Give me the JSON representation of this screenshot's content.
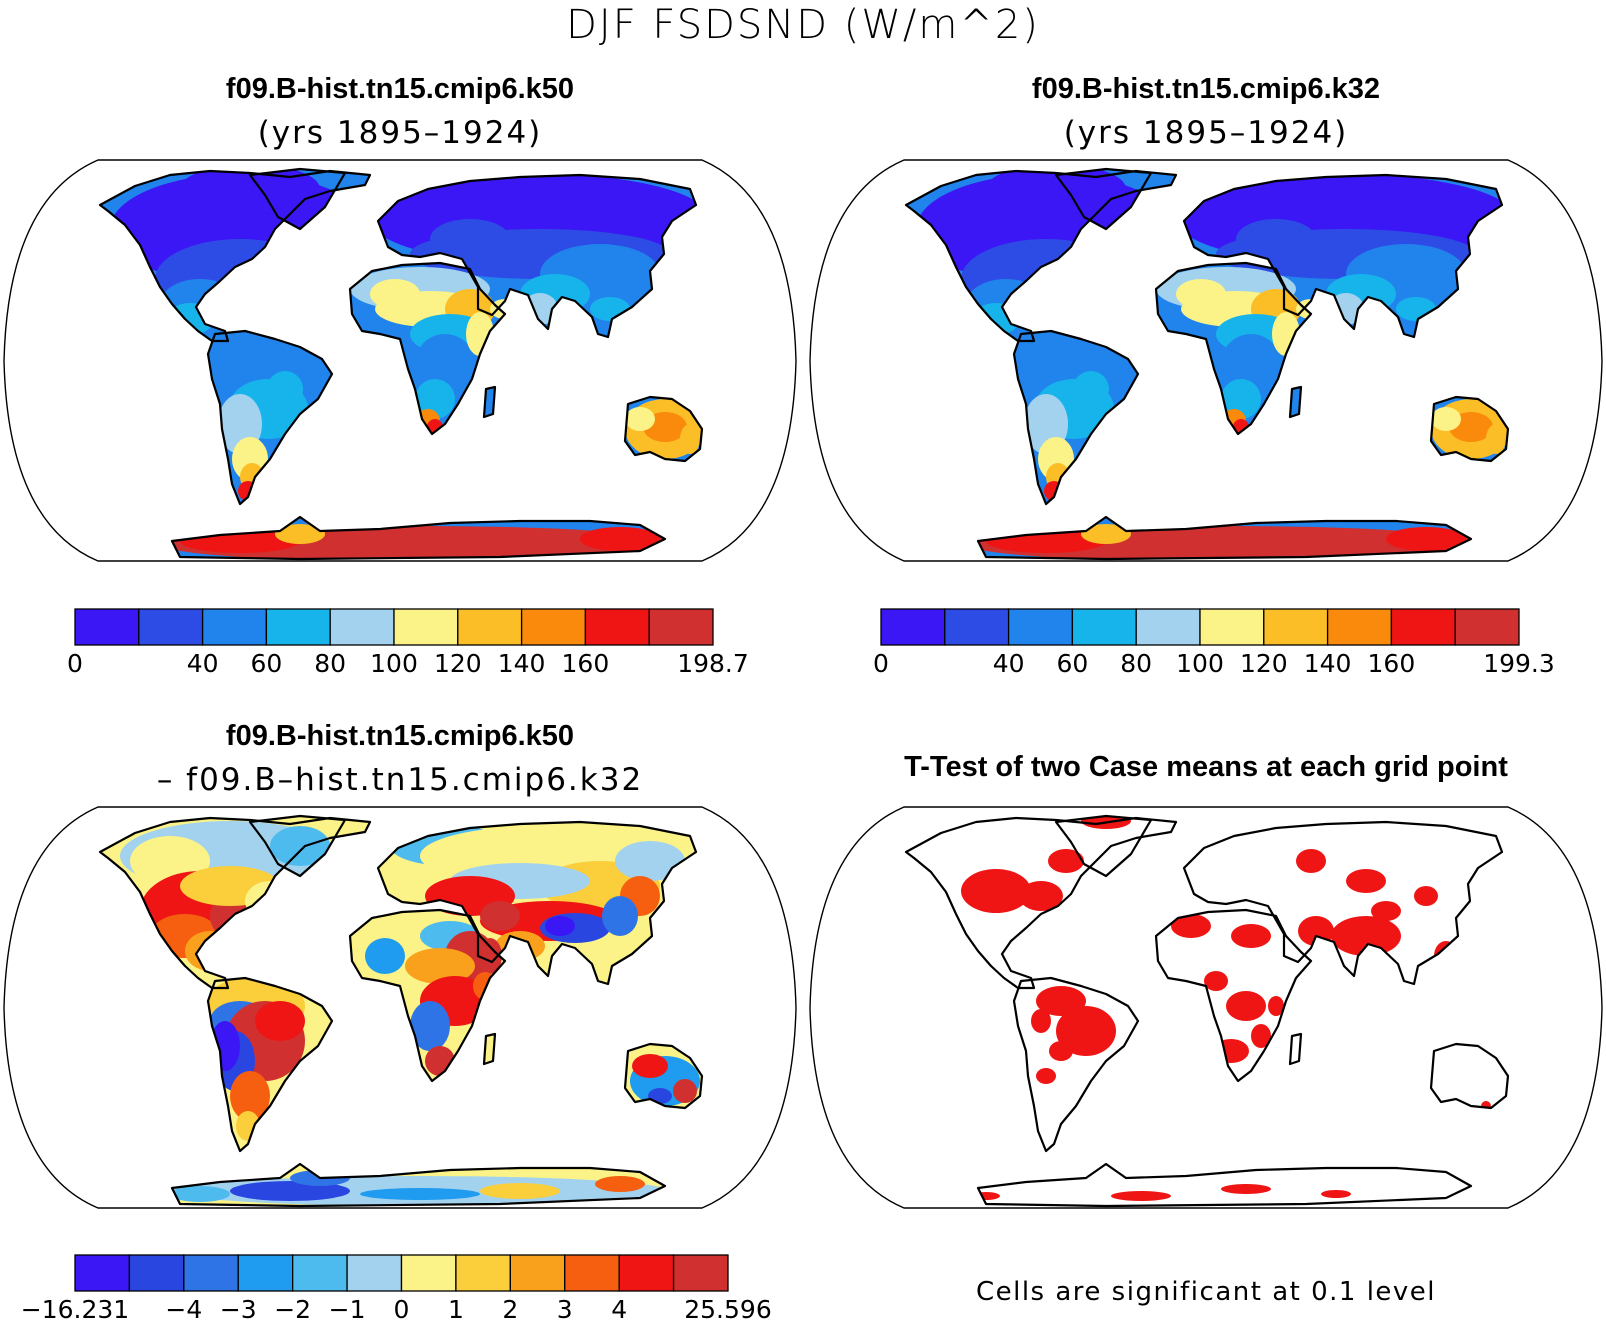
{
  "title": "DJF FSDSND (W/m^2)",
  "panels": [
    {
      "id": "case1",
      "title": "f09.B-hist.tn15.cmip6.k50",
      "subtitle": "(yrs 1895–1924)",
      "colorbar": {
        "colors": [
          "#3b17f5",
          "#2d4ce6",
          "#2084ec",
          "#17b4ec",
          "#a3d2ef",
          "#fbf388",
          "#fbbe26",
          "#f98a0b",
          "#ef1514",
          "#d03030"
        ],
        "labels": [
          "0",
          "40",
          "60",
          "80",
          "100",
          "120",
          "140",
          "160",
          "198.7"
        ],
        "label_boundary_index": [
          0,
          2,
          3,
          4,
          5,
          6,
          7,
          8,
          10
        ]
      }
    },
    {
      "id": "case2",
      "title": "f09.B-hist.tn15.cmip6.k32",
      "subtitle": "(yrs 1895–1924)",
      "colorbar": {
        "colors": [
          "#3b17f5",
          "#2d4ce6",
          "#2084ec",
          "#17b4ec",
          "#a3d2ef",
          "#fbf388",
          "#fbbe26",
          "#f98a0b",
          "#ef1514",
          "#d03030"
        ],
        "labels": [
          "0",
          "40",
          "60",
          "80",
          "100",
          "120",
          "140",
          "160",
          "199.3"
        ],
        "label_boundary_index": [
          0,
          2,
          3,
          4,
          5,
          6,
          7,
          8,
          10
        ]
      }
    },
    {
      "id": "diff",
      "title": "f09.B-hist.tn15.cmip6.k50",
      "subtitle": "– f09.B–hist.tn15.cmip6.k32",
      "colorbar": {
        "colors": [
          "#3b17f5",
          "#2a46e0",
          "#2f74e6",
          "#1f9bef",
          "#4ebbef",
          "#a3d2ef",
          "#fbf388",
          "#fbce3b",
          "#f9a11d",
          "#f55f0f",
          "#ef1514",
          "#d03030"
        ],
        "labels": [
          "−16.231",
          "−4",
          "−3",
          "−2",
          "−1",
          "0",
          "1",
          "2",
          "3",
          "4",
          "25.596"
        ],
        "label_boundary_index": [
          0,
          2,
          3,
          4,
          5,
          6,
          7,
          8,
          9,
          10,
          12
        ]
      }
    },
    {
      "id": "ttest",
      "title": "T-Test of two Case means at each grid point",
      "footnote": "Cells are significant at 0.1 level",
      "signif_color": "#ef1514"
    }
  ]
}
